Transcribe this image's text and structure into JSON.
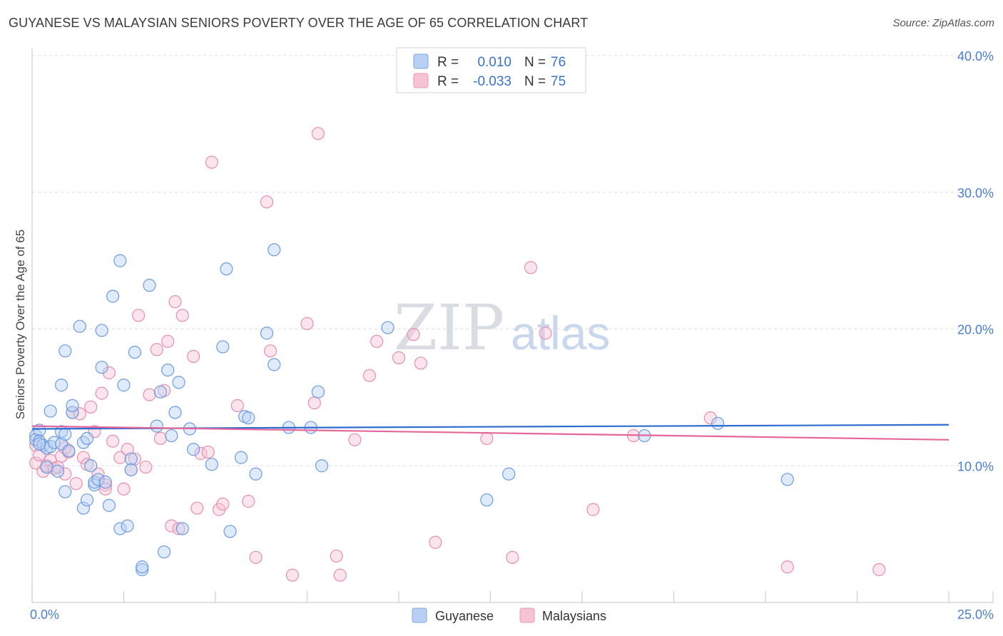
{
  "title": "GUYANESE VS MALAYSIAN SENIORS POVERTY OVER THE AGE OF 65 CORRELATION CHART",
  "source": "Source: ZipAtlas.com",
  "watermark": {
    "zip": "ZIP",
    "atlas": "atlas"
  },
  "colors": {
    "blue": "#4a7fd0",
    "blue_fill": "#b8d0f3",
    "blue_line": "#2f6cd0",
    "pink": "#e77fa5",
    "pink_fill": "#f6c3d4",
    "pink_line": "#e5679a"
  },
  "legend": {
    "row1": {
      "r_label": "R =",
      "r_value": "0.010",
      "n_label": "N =",
      "n_value": "76"
    },
    "row2": {
      "r_label": "R =",
      "r_value": "-0.033",
      "n_label": "N =",
      "n_value": "75"
    }
  },
  "chart_data": {
    "type": "scatter",
    "title": "GUYANESE VS MALAYSIAN SENIORS POVERTY OVER THE AGE OF 65 CORRELATION CHART",
    "xlabel": "",
    "ylabel": "Seniors Poverty Over the Age of 65",
    "xlim": [
      0,
      25
    ],
    "ylim": [
      0,
      40
    ],
    "x_tick_labels": {
      "min": "0.0%",
      "max": "25.0%"
    },
    "y_ticks": [
      10,
      20,
      30,
      40
    ],
    "y_tick_labels": [
      "10.0%",
      "20.0%",
      "30.0%",
      "40.0%"
    ],
    "legend_labels": [
      "Guyanese",
      "Malaysians"
    ],
    "series": [
      {
        "name": "Guyanese",
        "R": 0.01,
        "N": 76,
        "trend": [
          [
            0,
            12.7
          ],
          [
            25,
            13.0
          ]
        ],
        "points": [
          [
            0.1,
            12.2
          ],
          [
            0.1,
            11.9
          ],
          [
            0.2,
            12.6
          ],
          [
            0.2,
            11.8
          ],
          [
            0.3,
            11.5
          ],
          [
            0.4,
            11.3
          ],
          [
            0.4,
            9.9
          ],
          [
            0.5,
            14.0
          ],
          [
            0.5,
            11.4
          ],
          [
            0.6,
            11.7
          ],
          [
            0.7,
            9.6
          ],
          [
            0.8,
            15.9
          ],
          [
            0.8,
            12.5
          ],
          [
            0.8,
            11.6
          ],
          [
            0.9,
            18.4
          ],
          [
            0.9,
            8.1
          ],
          [
            1.0,
            11.1
          ],
          [
            1.1,
            13.9
          ],
          [
            1.1,
            14.4
          ],
          [
            1.3,
            20.2
          ],
          [
            1.4,
            11.7
          ],
          [
            1.4,
            6.9
          ],
          [
            1.5,
            12.0
          ],
          [
            1.5,
            7.5
          ],
          [
            1.6,
            10.0
          ],
          [
            1.7,
            8.6
          ],
          [
            1.7,
            8.8
          ],
          [
            1.8,
            9.0
          ],
          [
            1.9,
            19.9
          ],
          [
            1.9,
            17.2
          ],
          [
            2.0,
            8.8
          ],
          [
            2.1,
            7.1
          ],
          [
            2.2,
            22.4
          ],
          [
            2.4,
            25.0
          ],
          [
            2.4,
            5.4
          ],
          [
            2.5,
            15.9
          ],
          [
            2.6,
            5.6
          ],
          [
            2.7,
            10.5
          ],
          [
            2.7,
            9.7
          ],
          [
            2.8,
            18.3
          ],
          [
            3.0,
            2.4
          ],
          [
            3.0,
            2.6
          ],
          [
            3.2,
            23.2
          ],
          [
            3.4,
            12.9
          ],
          [
            3.5,
            15.4
          ],
          [
            3.6,
            3.7
          ],
          [
            3.7,
            17.0
          ],
          [
            3.8,
            12.2
          ],
          [
            3.9,
            13.9
          ],
          [
            4.0,
            16.1
          ],
          [
            4.1,
            5.4
          ],
          [
            4.3,
            12.7
          ],
          [
            4.4,
            11.2
          ],
          [
            4.9,
            10.1
          ],
          [
            5.2,
            18.7
          ],
          [
            5.3,
            24.4
          ],
          [
            5.4,
            5.2
          ],
          [
            5.7,
            10.6
          ],
          [
            5.8,
            13.6
          ],
          [
            5.9,
            13.5
          ],
          [
            6.1,
            9.4
          ],
          [
            6.4,
            19.7
          ],
          [
            6.6,
            17.4
          ],
          [
            6.6,
            25.8
          ],
          [
            7.0,
            12.8
          ],
          [
            7.6,
            12.8
          ],
          [
            7.8,
            15.4
          ],
          [
            7.9,
            10.0
          ],
          [
            9.7,
            20.1
          ],
          [
            12.4,
            7.5
          ],
          [
            13.0,
            9.4
          ],
          [
            16.7,
            12.2
          ],
          [
            18.7,
            13.1
          ],
          [
            20.6,
            9.0
          ],
          [
            0.2,
            11.6
          ],
          [
            0.9,
            12.3
          ]
        ]
      },
      {
        "name": "Malaysians",
        "R": -0.033,
        "N": 75,
        "trend": [
          [
            0,
            12.9
          ],
          [
            25,
            11.9
          ]
        ],
        "points": [
          [
            0.1,
            11.5
          ],
          [
            0.1,
            10.2
          ],
          [
            0.2,
            10.8
          ],
          [
            0.3,
            9.6
          ],
          [
            0.4,
            10.0
          ],
          [
            0.5,
            10.4
          ],
          [
            0.6,
            9.8
          ],
          [
            0.7,
            9.9
          ],
          [
            0.8,
            10.7
          ],
          [
            0.9,
            11.3
          ],
          [
            0.9,
            9.4
          ],
          [
            1.0,
            11.0
          ],
          [
            1.1,
            13.9
          ],
          [
            1.2,
            8.7
          ],
          [
            1.3,
            13.8
          ],
          [
            1.4,
            10.6
          ],
          [
            1.5,
            10.1
          ],
          [
            1.6,
            14.3
          ],
          [
            1.7,
            12.5
          ],
          [
            1.8,
            9.4
          ],
          [
            1.9,
            15.3
          ],
          [
            2.0,
            8.6
          ],
          [
            2.0,
            8.3
          ],
          [
            2.1,
            16.8
          ],
          [
            2.2,
            11.8
          ],
          [
            2.4,
            10.6
          ],
          [
            2.5,
            8.3
          ],
          [
            2.6,
            11.2
          ],
          [
            2.7,
            9.7
          ],
          [
            2.8,
            10.5
          ],
          [
            2.9,
            21.0
          ],
          [
            3.1,
            9.9
          ],
          [
            3.2,
            15.2
          ],
          [
            3.4,
            18.5
          ],
          [
            3.5,
            12.0
          ],
          [
            3.6,
            15.5
          ],
          [
            3.7,
            19.1
          ],
          [
            3.8,
            5.6
          ],
          [
            3.9,
            22.0
          ],
          [
            4.0,
            5.4
          ],
          [
            4.1,
            21.0
          ],
          [
            4.4,
            18.0
          ],
          [
            4.5,
            6.9
          ],
          [
            4.6,
            10.9
          ],
          [
            4.8,
            11.0
          ],
          [
            4.9,
            32.2
          ],
          [
            5.1,
            6.8
          ],
          [
            5.2,
            7.2
          ],
          [
            5.6,
            14.4
          ],
          [
            5.9,
            7.4
          ],
          [
            6.1,
            3.3
          ],
          [
            6.4,
            29.3
          ],
          [
            6.5,
            18.4
          ],
          [
            7.1,
            2.0
          ],
          [
            7.5,
            20.4
          ],
          [
            7.7,
            14.6
          ],
          [
            7.8,
            34.3
          ],
          [
            8.3,
            3.4
          ],
          [
            8.4,
            2.0
          ],
          [
            8.8,
            11.9
          ],
          [
            9.2,
            16.6
          ],
          [
            9.4,
            19.1
          ],
          [
            10.0,
            17.9
          ],
          [
            10.4,
            19.6
          ],
          [
            10.6,
            17.5
          ],
          [
            11.0,
            4.4
          ],
          [
            12.4,
            12.0
          ],
          [
            13.1,
            3.3
          ],
          [
            13.6,
            24.5
          ],
          [
            14.0,
            19.7
          ],
          [
            15.3,
            6.8
          ],
          [
            16.4,
            12.2
          ],
          [
            18.5,
            13.5
          ],
          [
            20.6,
            2.6
          ],
          [
            23.1,
            2.4
          ]
        ]
      }
    ]
  }
}
